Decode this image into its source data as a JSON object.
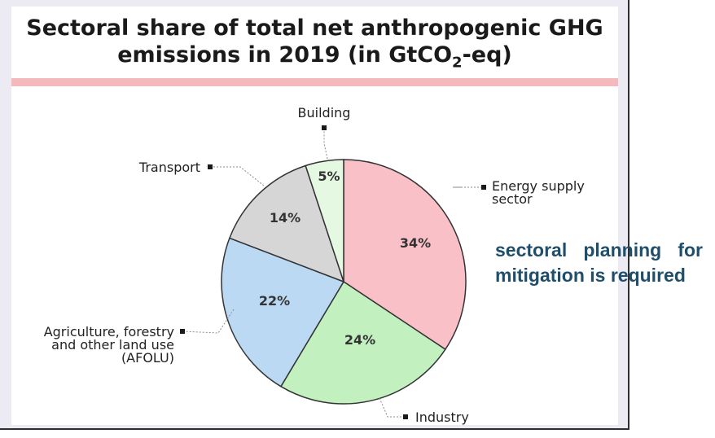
{
  "chart_data": {
    "type": "pie",
    "title_line1": "Sectoral share of total net anthropogenic GHG",
    "title_line2_prefix": "emissions in 2019 (in GtCO",
    "title_line2_sub": "2",
    "title_line2_suffix": "-eq)",
    "slices": [
      {
        "label": "Energy supply sector",
        "label_lines": [
          "Energy supply",
          "sector"
        ],
        "value": 34,
        "display": "34%",
        "color": "#f9c1c7"
      },
      {
        "label": "Industry",
        "label_lines": [
          "Industry"
        ],
        "value": 24,
        "display": "24%",
        "color": "#c2f0bf"
      },
      {
        "label": "Agriculture, forestry and other land use (AFOLU)",
        "label_lines": [
          "Agriculture, forestry",
          "and other land use",
          "(AFOLU)"
        ],
        "value": 22,
        "display": "22%",
        "color": "#bcd9f3"
      },
      {
        "label": "Transport",
        "label_lines": [
          "Transport"
        ],
        "value": 14,
        "display": "14%",
        "color": "#d6d6d6"
      },
      {
        "label": "Building",
        "label_lines": [
          "Building"
        ],
        "value": 5,
        "display": "5%",
        "color": "#e4f8e2"
      }
    ]
  },
  "overlay": {
    "text": "sectoral planning for mitigation is required"
  },
  "colors": {
    "pink_band": "#f4b8bd",
    "overlay_text": "#1f4e6b",
    "panel_bg": "#ecebf3"
  }
}
